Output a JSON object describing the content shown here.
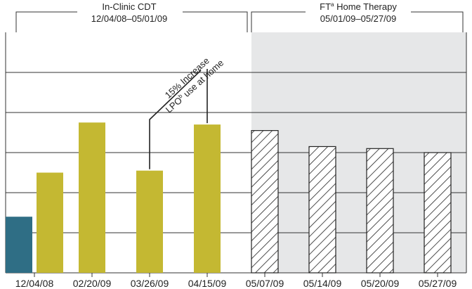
{
  "chart_data": {
    "type": "bar",
    "title": "",
    "xlabel": "",
    "ylabel": "",
    "ylim": [
      0,
      6
    ],
    "grid": true,
    "periods": [
      {
        "name": "In-Clinic CDT",
        "dates": "12/04/08–05/01/09"
      },
      {
        "name": "FT",
        "sup": "a",
        "name_rest": " Home Therapy",
        "dates": "05/01/09–05/27/09"
      }
    ],
    "categories": [
      "12/04/08",
      "02/20/09",
      "03/26/09",
      "04/15/09",
      "05/07/09",
      "05/14/09",
      "05/20/09",
      "05/27/09"
    ],
    "series": [
      {
        "style": "teal",
        "color": "#2f6e85",
        "values": [
          1.4,
          null,
          null,
          null,
          null,
          null,
          null,
          null
        ]
      },
      {
        "style": "olive",
        "color": "#c4b832",
        "values": [
          2.5,
          3.75,
          2.55,
          3.7,
          null,
          null,
          null,
          null
        ]
      },
      {
        "style": "hatched",
        "color": "#222222",
        "values": [
          null,
          null,
          null,
          null,
          3.55,
          3.15,
          3.1,
          3.0
        ]
      }
    ],
    "annotation": {
      "line1": "15% Increase",
      "line2_pre": "LPO",
      "line2_sup": "b",
      "line2_post": " use at home",
      "from_category": "03/26/09",
      "to_category": "04/15/09"
    },
    "colors": {
      "shaded_region": "#e6e7e8",
      "teal": "#2f6e85",
      "olive": "#c4b832"
    }
  }
}
